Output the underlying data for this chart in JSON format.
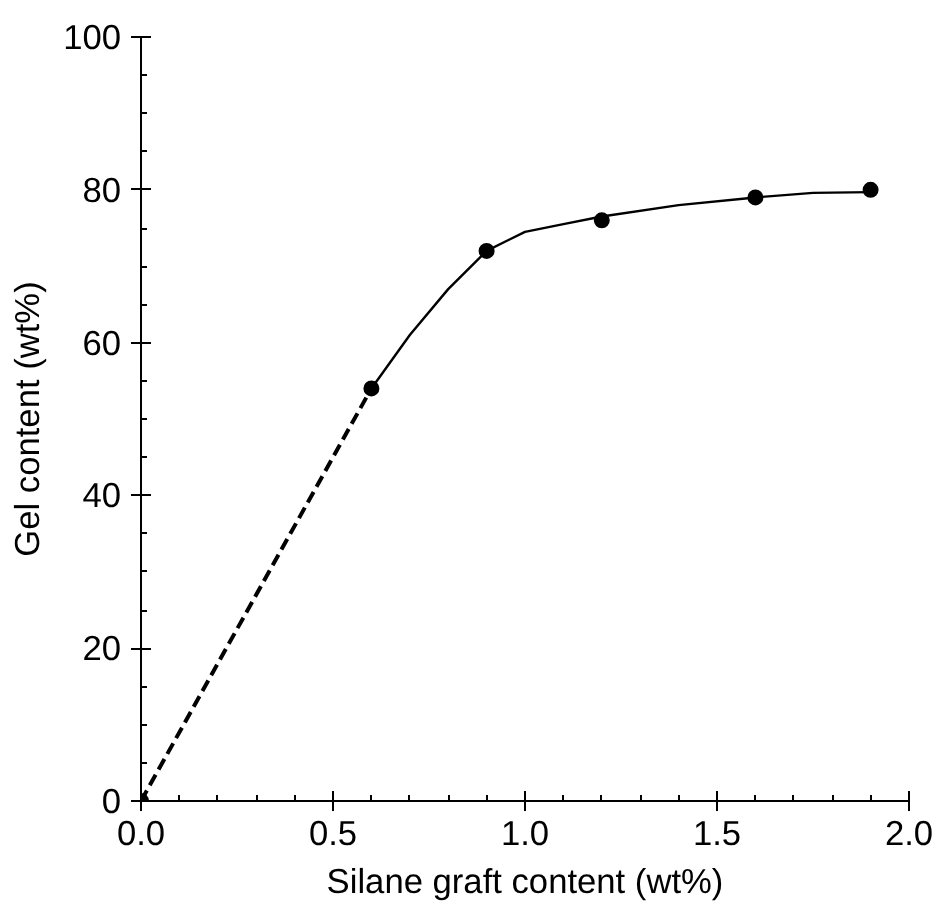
{
  "chart_data": {
    "type": "scatter",
    "xlabel": "Silane graft content (wt%)",
    "ylabel": "Gel content (wt%)",
    "xlim": [
      0,
      2
    ],
    "xticks": [
      {
        "value": 0,
        "label": "0.0"
      },
      {
        "value": 0.5,
        "label": "0.5"
      },
      {
        "value": 1,
        "label": "1.0"
      },
      {
        "value": 1.5,
        "label": "1.5"
      },
      {
        "value": 2,
        "label": "2.0"
      }
    ],
    "ylim": [
      0,
      100
    ],
    "yticks": [
      0,
      20,
      40,
      60,
      80,
      100
    ],
    "grid": false,
    "series": [
      {
        "type": "line",
        "color": "#000000",
        "line_style": "dashed",
        "x": [
          0,
          0.6
        ],
        "values": [
          0,
          54
        ]
      },
      {
        "type": "line",
        "color": "#000000",
        "line_style": "solid",
        "x": [
          0.6,
          0.7,
          0.8,
          0.9,
          1.0,
          1.1,
          1.2,
          1.4,
          1.6,
          1.75,
          1.9
        ],
        "values": [
          54,
          61,
          67,
          72,
          74.5,
          75.5,
          76.5,
          78,
          79,
          79.6,
          79.7
        ]
      },
      {
        "color": "#000000",
        "marker": "circle",
        "x": [
          0,
          0.6,
          0.9,
          1.2,
          1.6,
          1.9
        ],
        "values": [
          0,
          54,
          72,
          76,
          79,
          80
        ]
      }
    ]
  }
}
